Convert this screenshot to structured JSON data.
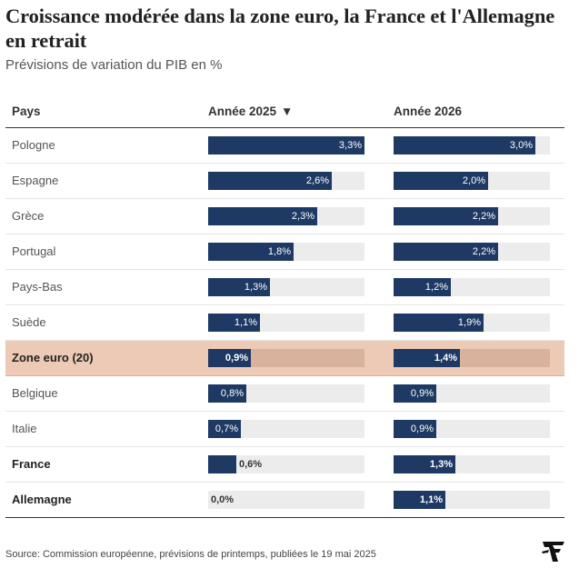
{
  "title": "Croissance modérée dans la zone euro, la France et l'Allemagne en retrait",
  "subtitle": "Prévisions de variation du PIB en %",
  "headers": {
    "country": "Pays",
    "year2025": "Année 2025",
    "year2026": "Année 2026",
    "sort_icon": "triangle-down-icon"
  },
  "source": "Source: Commission européenne, prévisions de printemps, publiées le 19 mai 2025",
  "logo_icon": "le-figaro-f-logo",
  "colors": {
    "bar": "#1e3a64",
    "track": "#ececec",
    "highlight_row": "#edcab5",
    "highlight_track": "#d9b29d"
  },
  "chart_data": {
    "type": "table",
    "max": 3.3,
    "rows": [
      {
        "label": "Pologne",
        "v2025": 3.3,
        "v2026": 3.0,
        "t2025": "3,3%",
        "t2026": "3,0%",
        "bold": false,
        "highlight": false
      },
      {
        "label": "Espagne",
        "v2025": 2.6,
        "v2026": 2.0,
        "t2025": "2,6%",
        "t2026": "2,0%",
        "bold": false,
        "highlight": false
      },
      {
        "label": "Grèce",
        "v2025": 2.3,
        "v2026": 2.2,
        "t2025": "2,3%",
        "t2026": "2,2%",
        "bold": false,
        "highlight": false
      },
      {
        "label": "Portugal",
        "v2025": 1.8,
        "v2026": 2.2,
        "t2025": "1,8%",
        "t2026": "2,2%",
        "bold": false,
        "highlight": false
      },
      {
        "label": "Pays-Bas",
        "v2025": 1.3,
        "v2026": 1.2,
        "t2025": "1,3%",
        "t2026": "1,2%",
        "bold": false,
        "highlight": false
      },
      {
        "label": "Suède",
        "v2025": 1.1,
        "v2026": 1.9,
        "t2025": "1,1%",
        "t2026": "1,9%",
        "bold": false,
        "highlight": false
      },
      {
        "label": "Zone euro (20)",
        "v2025": 0.9,
        "v2026": 1.4,
        "t2025": "0,9%",
        "t2026": "1,4%",
        "bold": true,
        "highlight": true
      },
      {
        "label": "Belgique",
        "v2025": 0.8,
        "v2026": 0.9,
        "t2025": "0,8%",
        "t2026": "0,9%",
        "bold": false,
        "highlight": false
      },
      {
        "label": "Italie",
        "v2025": 0.7,
        "v2026": 0.9,
        "t2025": "0,7%",
        "t2026": "0,9%",
        "bold": false,
        "highlight": false
      },
      {
        "label": "France",
        "v2025": 0.6,
        "v2026": 1.3,
        "t2025": "0,6%",
        "t2026": "1,3%",
        "bold": true,
        "highlight": false
      },
      {
        "label": "Allemagne",
        "v2025": 0.0,
        "v2026": 1.1,
        "t2025": "0,0%",
        "t2026": "1,1%",
        "bold": true,
        "highlight": false
      }
    ]
  }
}
